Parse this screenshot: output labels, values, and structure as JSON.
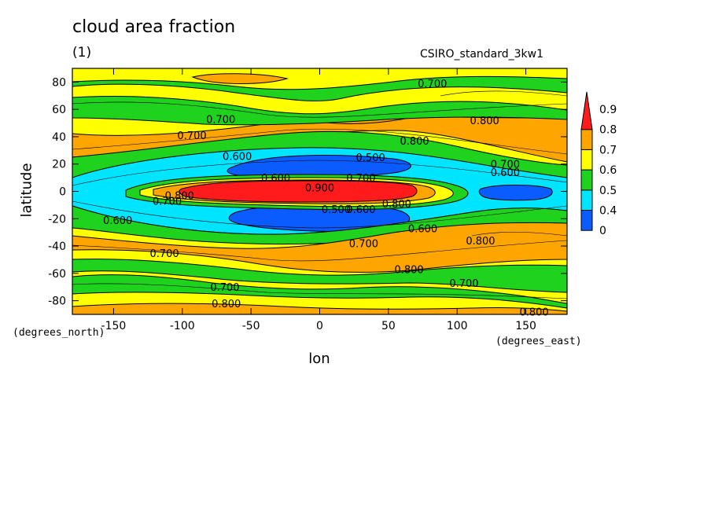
{
  "figure": {
    "title": "cloud area fraction",
    "units": "(1)",
    "model": "CSIRO_standard_3kw1",
    "ylabel": "latitude",
    "xlabel": "lon",
    "yunits": "(degrees_north)",
    "xunits": "(degrees_east)"
  },
  "chart_data": {
    "type": "heatmap",
    "xlabel": "lon",
    "ylabel": "latitude",
    "xlim": [
      -180,
      180
    ],
    "ylim": [
      -90,
      90
    ],
    "x_ticks": [
      -150,
      -100,
      -50,
      0,
      50,
      100,
      150
    ],
    "y_ticks": [
      -80,
      -60,
      -40,
      -20,
      0,
      20,
      40,
      60,
      80
    ],
    "colorbar": {
      "levels": [
        0,
        0.4,
        0.5,
        0.6,
        0.7,
        0.8,
        0.9
      ],
      "labels": [
        "0",
        "0.4",
        "0.5",
        "0.6",
        "0.7",
        "0.8",
        "0.9"
      ],
      "colors": [
        "#0a5cff",
        "#00e5ff",
        "#1ed21e",
        "#ffff00",
        "#ffa500",
        "#ff1b1b"
      ],
      "extend": "max"
    },
    "colors": {
      "0-0.4": "#0a5cff",
      "0.4-0.5": "#00e5ff",
      "0.5-0.6": "#1ed21e",
      "0.6-0.7": "#ffff00",
      "0.7-0.8": "#ffa500",
      "0.8-0.9": "#ff1b1b"
    },
    "contour_labels": [
      {
        "text": "0.700",
        "lon": 82,
        "lat": 79
      },
      {
        "text": "0.700",
        "lon": -72,
        "lat": 53
      },
      {
        "text": "0.800",
        "lon": 120,
        "lat": 52
      },
      {
        "text": "0.700",
        "lon": -93,
        "lat": 41
      },
      {
        "text": "0.800",
        "lon": 69,
        "lat": 37
      },
      {
        "text": "0.600",
        "lon": -60,
        "lat": 26
      },
      {
        "text": "0.500",
        "lon": 37,
        "lat": 25
      },
      {
        "text": "0.700",
        "lon": 135,
        "lat": 20
      },
      {
        "text": "0.600",
        "lon": 135,
        "lat": 14
      },
      {
        "text": "0.600",
        "lon": -32,
        "lat": 10
      },
      {
        "text": "0.700",
        "lon": 30,
        "lat": 10
      },
      {
        "text": "0.900",
        "lon": 0,
        "lat": 3
      },
      {
        "text": "0.800",
        "lon": -102,
        "lat": -3
      },
      {
        "text": "0.700",
        "lon": -111,
        "lat": -7
      },
      {
        "text": "0.800",
        "lon": 56,
        "lat": -9
      },
      {
        "text": "0.500",
        "lon": 12,
        "lat": -13
      },
      {
        "text": "0.600",
        "lon": 30,
        "lat": -13
      },
      {
        "text": "0.600",
        "lon": -147,
        "lat": -21
      },
      {
        "text": "0.600",
        "lon": 75,
        "lat": -27
      },
      {
        "text": "0.700",
        "lon": 32,
        "lat": -38
      },
      {
        "text": "0.800",
        "lon": 117,
        "lat": -36
      },
      {
        "text": "0.700",
        "lon": -113,
        "lat": -45
      },
      {
        "text": "0.800",
        "lon": 65,
        "lat": -57
      },
      {
        "text": "0.700",
        "lon": 105,
        "lat": -67
      },
      {
        "text": "0.700",
        "lon": -69,
        "lat": -70
      },
      {
        "text": "0.800",
        "lon": -68,
        "lat": -82
      },
      {
        "text": "0.800",
        "lon": 156,
        "lat": -88
      }
    ]
  }
}
